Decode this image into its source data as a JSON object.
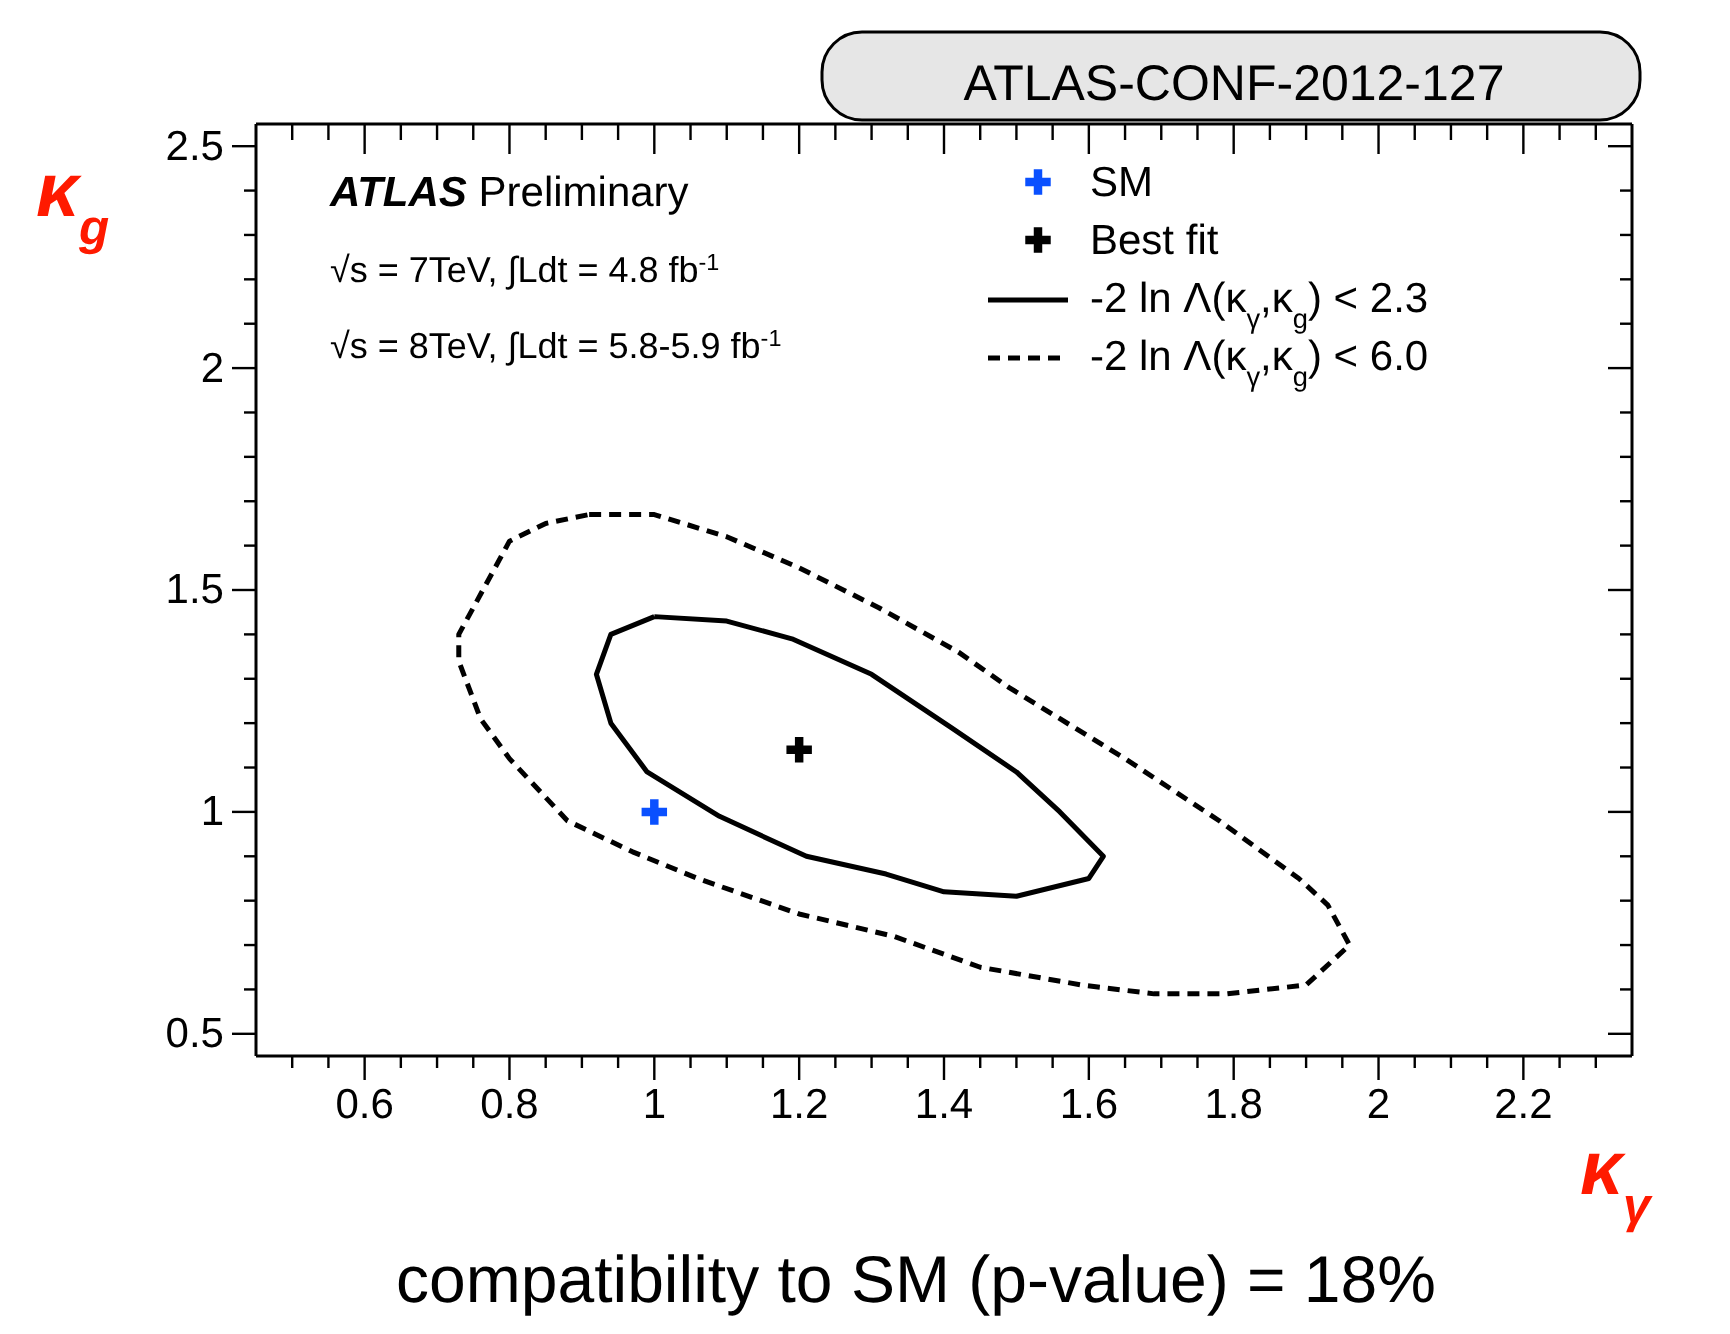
{
  "chart_data": {
    "type": "line",
    "xlabel": "κ$_{γ}$",
    "ylabel": "κ$_{g}$",
    "xlim": [
      0.45,
      2.35
    ],
    "ylim": [
      0.45,
      2.55
    ],
    "xticks": [
      {
        "value": 0.5,
        "label": null
      },
      {
        "value": 0.55,
        "label": null
      },
      0.6,
      {
        "value": 0.65,
        "label": null
      },
      {
        "value": 0.7,
        "label": null
      },
      {
        "value": 0.75,
        "label": null
      },
      0.8,
      {
        "value": 0.85,
        "label": null
      },
      {
        "value": 0.9,
        "label": null
      },
      {
        "value": 0.95,
        "label": null
      },
      1,
      {
        "value": 1.05,
        "label": null
      },
      {
        "value": 1.1,
        "label": null
      },
      {
        "value": 1.15,
        "label": null
      },
      1.2,
      {
        "value": 1.25,
        "label": null
      },
      {
        "value": 1.3,
        "label": null
      },
      {
        "value": 1.35,
        "label": null
      },
      1.4,
      {
        "value": 1.45,
        "label": null
      },
      {
        "value": 1.5,
        "label": null
      },
      {
        "value": 1.55,
        "label": null
      },
      1.6,
      {
        "value": 1.65,
        "label": null
      },
      {
        "value": 1.7,
        "label": null
      },
      {
        "value": 1.75,
        "label": null
      },
      1.8,
      {
        "value": 1.85,
        "label": null
      },
      {
        "value": 1.9,
        "label": null
      },
      {
        "value": 1.95,
        "label": null
      },
      2,
      {
        "value": 2.05,
        "label": null
      },
      {
        "value": 2.1,
        "label": null
      },
      {
        "value": 2.15,
        "label": null
      },
      2.2,
      {
        "value": 2.25,
        "label": null
      },
      {
        "value": 2.3,
        "label": null
      }
    ],
    "yticks": [
      0.5,
      {
        "value": 0.6,
        "label": null
      },
      {
        "value": 0.7,
        "label": null
      },
      {
        "value": 0.8,
        "label": null
      },
      {
        "value": 0.9,
        "label": null
      },
      1,
      {
        "value": 1.1,
        "label": null
      },
      {
        "value": 1.2,
        "label": null
      },
      {
        "value": 1.3,
        "label": null
      },
      {
        "value": 1.4,
        "label": null
      },
      1.5,
      {
        "value": 1.6,
        "label": null
      },
      {
        "value": 1.7,
        "label": null
      },
      {
        "value": 1.8,
        "label": null
      },
      {
        "value": 1.9,
        "label": null
      },
      2,
      {
        "value": 2.1,
        "label": null
      },
      {
        "value": 2.2,
        "label": null
      },
      {
        "value": 2.3,
        "label": null
      },
      {
        "value": 2.4,
        "label": null
      },
      2.5
    ],
    "grid": false,
    "legend": "top right",
    "series": [
      {
        "name": "SM",
        "type": "scatter",
        "marker": "cross",
        "color": "#0a50ff",
        "x": [
          1
        ],
        "values": [
          1
        ]
      },
      {
        "name": "Best fit",
        "type": "scatter",
        "marker": "cross",
        "color": "#000000",
        "x": [
          1.2
        ],
        "values": [
          1.14
        ]
      }
    ],
    "annotations": [
      "-2 ln Λ(κ$_{γ}$,κ$_{g}$) < 2.3",
      "-2 ln Λ(κ$_{γ}$,κ$_{g}$) < 6.0",
      "ATLAS-CONF-2012-127",
      "ATLAS Preliminary",
      "√s = 7TeV, ∫Ldt = 4.8 fb$^{-1}$",
      "√s = 8TeV, ∫Ldt = 5.8-5.9 fb$^{-1}$",
      "compatibility to SM (p-value) = 18%"
    ]
  }
}
